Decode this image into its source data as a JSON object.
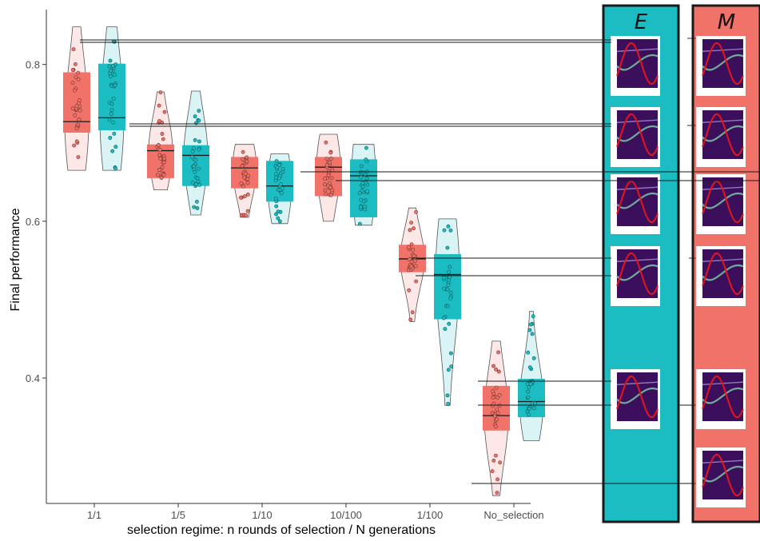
{
  "chart_data": {
    "type": "box-violin",
    "xlabel": "selection regime: n rounds of selection / N generations",
    "ylabel": "Final performance",
    "ylim": [
      0.24,
      0.87
    ],
    "yticks": [
      0.4,
      0.6,
      0.8
    ],
    "ytick_labels": [
      "0.4",
      "0.6",
      "0.8"
    ],
    "categories": [
      "1/1",
      "1/5",
      "1/10",
      "10/100",
      "1/100",
      "No_selection"
    ],
    "series": [
      {
        "color": "#F07268",
        "boxes": [
          {
            "min": 0.665,
            "q1": 0.713,
            "median": 0.727,
            "q3": 0.79,
            "max": 0.848
          },
          {
            "min": 0.64,
            "q1": 0.655,
            "median": 0.69,
            "q3": 0.698,
            "max": 0.765
          },
          {
            "min": 0.605,
            "q1": 0.642,
            "median": 0.668,
            "q3": 0.682,
            "max": 0.698
          },
          {
            "min": 0.6,
            "q1": 0.632,
            "median": 0.669,
            "q3": 0.682,
            "max": 0.711
          },
          {
            "min": 0.472,
            "q1": 0.535,
            "median": 0.552,
            "q3": 0.57,
            "max": 0.617
          },
          {
            "min": 0.25,
            "q1": 0.333,
            "median": 0.352,
            "q3": 0.39,
            "max": 0.447
          }
        ]
      },
      {
        "color": "#1BBDC2",
        "boxes": [
          {
            "min": 0.665,
            "q1": 0.716,
            "median": 0.732,
            "q3": 0.801,
            "max": 0.848
          },
          {
            "min": 0.608,
            "q1": 0.645,
            "median": 0.684,
            "q3": 0.697,
            "max": 0.766
          },
          {
            "min": 0.597,
            "q1": 0.625,
            "median": 0.645,
            "q3": 0.677,
            "max": 0.686
          },
          {
            "min": 0.595,
            "q1": 0.605,
            "median": 0.658,
            "q3": 0.679,
            "max": 0.698
          },
          {
            "min": 0.365,
            "q1": 0.475,
            "median": 0.532,
            "q3": 0.558,
            "max": 0.603
          },
          {
            "min": 0.32,
            "q1": 0.35,
            "median": 0.37,
            "q3": 0.399,
            "max": 0.485
          }
        ]
      }
    ],
    "side_panels": [
      {
        "label": "E",
        "color": "#1BBDC2",
        "thumbnails": 5
      },
      {
        "label": "M",
        "color": "#F07268",
        "thumbnails": 5
      }
    ]
  }
}
